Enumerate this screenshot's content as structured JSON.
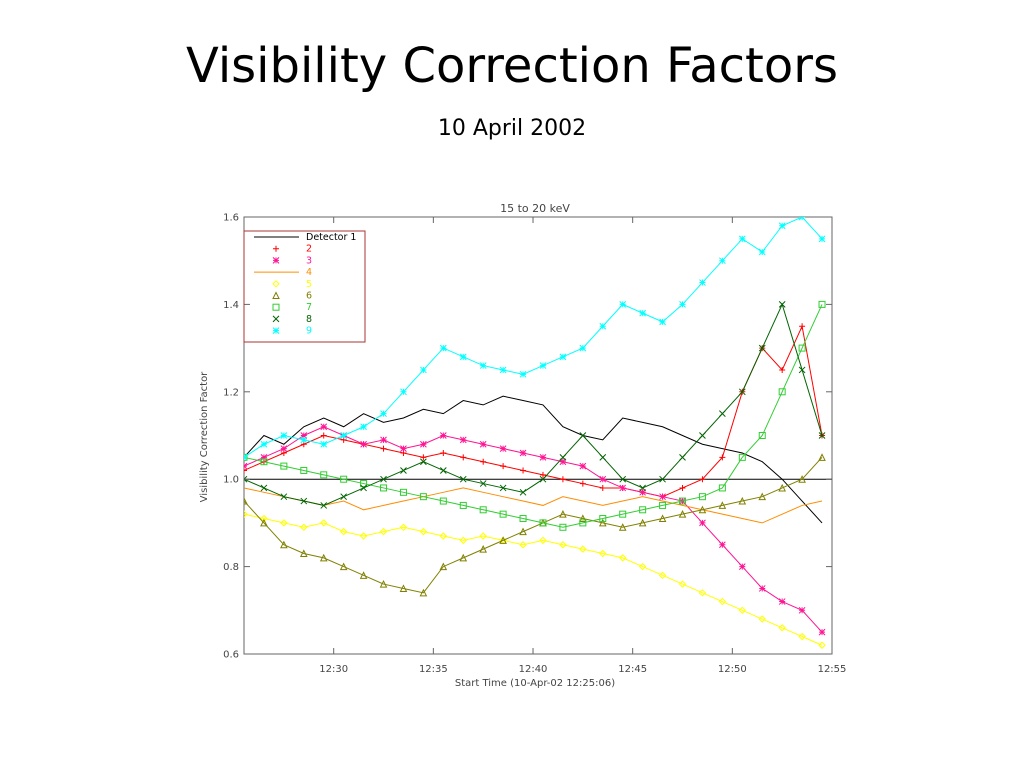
{
  "slide": {
    "title": "Visibility Correction Factors",
    "subtitle": "10 April 2002"
  },
  "chart_data": {
    "type": "line",
    "title": "15 to 20 keV",
    "xlabel": "Start Time (10-Apr-02 12:25:06)",
    "ylabel": "Visibility Correction Factor",
    "xlim": [
      "12:25:30",
      "12:55:00"
    ],
    "ylim": [
      0.6,
      1.6
    ],
    "x_ticks": [
      "12:30",
      "12:35",
      "12:40",
      "12:45",
      "12:50",
      "12:55"
    ],
    "y_ticks": [
      "0.6",
      "0.8",
      "1.0",
      "1.2",
      "1.4",
      "1.6"
    ],
    "reference_line": 1.0,
    "legend_position": "top-left",
    "x_minutes": [
      0,
      1,
      2,
      3,
      4,
      5,
      6,
      7,
      8,
      9,
      10,
      11,
      12,
      13,
      14,
      15,
      16,
      17,
      18,
      19,
      20,
      21,
      22,
      23,
      24,
      25,
      26,
      27,
      28,
      29
    ],
    "series": [
      {
        "name": "Detector 1",
        "color": "#000000",
        "marker": "none",
        "values": [
          1.05,
          1.1,
          1.08,
          1.12,
          1.14,
          1.12,
          1.15,
          1.13,
          1.14,
          1.16,
          1.15,
          1.18,
          1.17,
          1.19,
          1.18,
          1.17,
          1.12,
          1.1,
          1.09,
          1.14,
          1.13,
          1.12,
          1.1,
          1.08,
          1.07,
          1.06,
          1.04,
          1.0,
          0.95,
          0.9
        ]
      },
      {
        "name": "2",
        "color": "#ff0000",
        "marker": "plus",
        "values": [
          1.02,
          1.04,
          1.06,
          1.08,
          1.1,
          1.09,
          1.08,
          1.07,
          1.06,
          1.05,
          1.06,
          1.05,
          1.04,
          1.03,
          1.02,
          1.01,
          1.0,
          0.99,
          0.98,
          0.98,
          0.97,
          0.96,
          0.98,
          1.0,
          1.05,
          1.2,
          1.3,
          1.25,
          1.35,
          1.1
        ]
      },
      {
        "name": "3",
        "color": "#ff1493",
        "marker": "star",
        "values": [
          1.03,
          1.05,
          1.07,
          1.1,
          1.12,
          1.1,
          1.08,
          1.09,
          1.07,
          1.08,
          1.1,
          1.09,
          1.08,
          1.07,
          1.06,
          1.05,
          1.04,
          1.03,
          1.0,
          0.98,
          0.97,
          0.96,
          0.95,
          0.9,
          0.85,
          0.8,
          0.75,
          0.72,
          0.7,
          0.65
        ]
      },
      {
        "name": "4",
        "color": "#ff8c00",
        "marker": "none",
        "values": [
          0.98,
          0.97,
          0.96,
          0.95,
          0.94,
          0.95,
          0.93,
          0.94,
          0.95,
          0.96,
          0.97,
          0.98,
          0.97,
          0.96,
          0.95,
          0.94,
          0.96,
          0.95,
          0.94,
          0.95,
          0.96,
          0.95,
          0.94,
          0.93,
          0.92,
          0.91,
          0.9,
          0.92,
          0.94,
          0.95
        ]
      },
      {
        "name": "5",
        "color": "#ffff00",
        "marker": "diamond",
        "values": [
          0.92,
          0.91,
          0.9,
          0.89,
          0.9,
          0.88,
          0.87,
          0.88,
          0.89,
          0.88,
          0.87,
          0.86,
          0.87,
          0.86,
          0.85,
          0.86,
          0.85,
          0.84,
          0.83,
          0.82,
          0.8,
          0.78,
          0.76,
          0.74,
          0.72,
          0.7,
          0.68,
          0.66,
          0.64,
          0.62
        ]
      },
      {
        "name": "6",
        "color": "#808000",
        "marker": "triangle",
        "values": [
          0.95,
          0.9,
          0.85,
          0.83,
          0.82,
          0.8,
          0.78,
          0.76,
          0.75,
          0.74,
          0.8,
          0.82,
          0.84,
          0.86,
          0.88,
          0.9,
          0.92,
          0.91,
          0.9,
          0.89,
          0.9,
          0.91,
          0.92,
          0.93,
          0.94,
          0.95,
          0.96,
          0.98,
          1.0,
          1.05
        ]
      },
      {
        "name": "7",
        "color": "#32cd32",
        "marker": "square",
        "values": [
          1.05,
          1.04,
          1.03,
          1.02,
          1.01,
          1.0,
          0.99,
          0.98,
          0.97,
          0.96,
          0.95,
          0.94,
          0.93,
          0.92,
          0.91,
          0.9,
          0.89,
          0.9,
          0.91,
          0.92,
          0.93,
          0.94,
          0.95,
          0.96,
          0.98,
          1.05,
          1.1,
          1.2,
          1.3,
          1.4
        ]
      },
      {
        "name": "8",
        "color": "#006400",
        "marker": "cross",
        "values": [
          1.0,
          0.98,
          0.96,
          0.95,
          0.94,
          0.96,
          0.98,
          1.0,
          1.02,
          1.04,
          1.02,
          1.0,
          0.99,
          0.98,
          0.97,
          1.0,
          1.05,
          1.1,
          1.05,
          1.0,
          0.98,
          1.0,
          1.05,
          1.1,
          1.15,
          1.2,
          1.3,
          1.4,
          1.25,
          1.1
        ]
      },
      {
        "name": "9",
        "color": "#00ffff",
        "marker": "star",
        "values": [
          1.05,
          1.08,
          1.1,
          1.09,
          1.08,
          1.1,
          1.12,
          1.15,
          1.2,
          1.25,
          1.3,
          1.28,
          1.26,
          1.25,
          1.24,
          1.26,
          1.28,
          1.3,
          1.35,
          1.4,
          1.38,
          1.36,
          1.4,
          1.45,
          1.5,
          1.55,
          1.52,
          1.58,
          1.6,
          1.55
        ]
      }
    ]
  }
}
